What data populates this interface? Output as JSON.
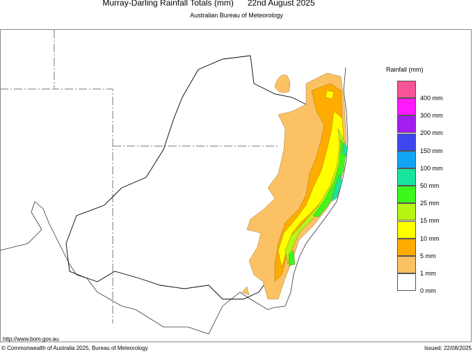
{
  "header": {
    "title": "Murray-Darling Rainfall Totals (mm)",
    "date": "22nd August 2025",
    "subtitle": "Australian Bureau of Meteorology"
  },
  "legend": {
    "title": "Rainfall (mm)",
    "colors": [
      "#f55596",
      "#ff1aff",
      "#a21ef0",
      "#3e47ec",
      "#14a4f5",
      "#1ae39d",
      "#3cf81c",
      "#b7f514",
      "#ffff00",
      "#ffab00",
      "#fcc163",
      "#ffffff"
    ],
    "labels": [
      "400 mm",
      "300 mm",
      "200 mm",
      "150 mm",
      "100 mm",
      "50 mm",
      "25 mm",
      "15 mm",
      "10 mm",
      "5 mm",
      "1 mm",
      "0 mm"
    ]
  },
  "footer": {
    "url": "http://www.bom.gov.au",
    "copyright": "© Commonwealth of Australia 2025, Bureau of Meteorology",
    "issued": "Issued: 22/08/2025"
  }
}
